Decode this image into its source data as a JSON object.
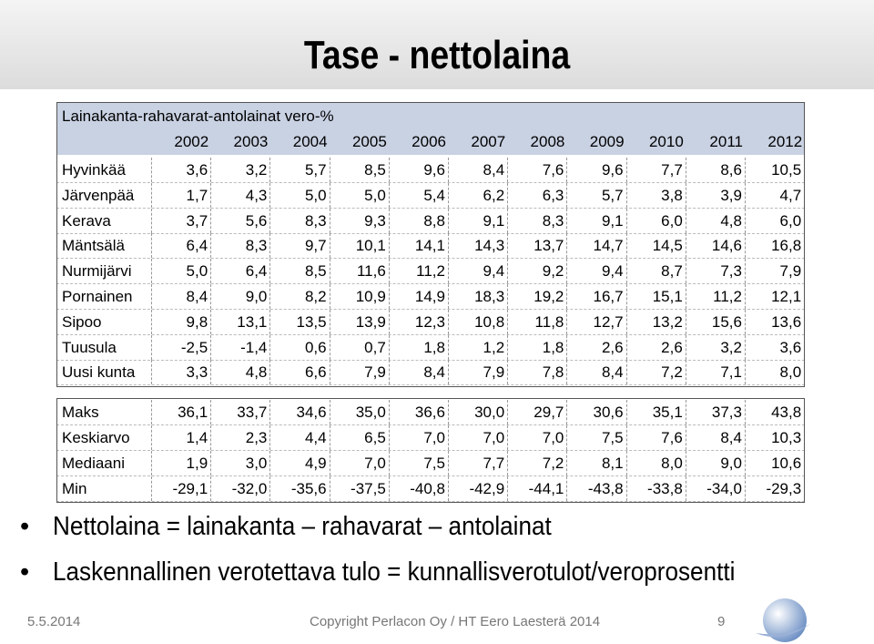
{
  "header": {
    "title": "Tase - nettolaina"
  },
  "table": {
    "caption": "Lainakanta-rahavarat-antolainat vero-%",
    "columns": [
      "2002",
      "2003",
      "2004",
      "2005",
      "2006",
      "2007",
      "2008",
      "2009",
      "2010",
      "2011",
      "2012"
    ],
    "rows": [
      [
        "Hyvinkää",
        "3,6",
        "3,2",
        "5,7",
        "8,5",
        "9,6",
        "8,4",
        "7,6",
        "9,6",
        "7,7",
        "8,6",
        "10,5"
      ],
      [
        "Järvenpää",
        "1,7",
        "4,3",
        "5,0",
        "5,0",
        "5,4",
        "6,2",
        "6,3",
        "5,7",
        "3,8",
        "3,9",
        "4,7"
      ],
      [
        "Kerava",
        "3,7",
        "5,6",
        "8,3",
        "9,3",
        "8,8",
        "9,1",
        "8,3",
        "9,1",
        "6,0",
        "4,8",
        "6,0"
      ],
      [
        "Mäntsälä",
        "6,4",
        "8,3",
        "9,7",
        "10,1",
        "14,1",
        "14,3",
        "13,7",
        "14,7",
        "14,5",
        "14,6",
        "16,8"
      ],
      [
        "Nurmijärvi",
        "5,0",
        "6,4",
        "8,5",
        "11,6",
        "11,2",
        "9,4",
        "9,2",
        "9,4",
        "8,7",
        "7,3",
        "7,9"
      ],
      [
        "Pornainen",
        "8,4",
        "9,0",
        "8,2",
        "10,9",
        "14,9",
        "18,3",
        "19,2",
        "16,7",
        "15,1",
        "11,2",
        "12,1"
      ],
      [
        "Sipoo",
        "9,8",
        "13,1",
        "13,5",
        "13,9",
        "12,3",
        "10,8",
        "11,8",
        "12,7",
        "13,2",
        "15,6",
        "13,6"
      ],
      [
        "Tuusula",
        "-2,5",
        "-1,4",
        "0,6",
        "0,7",
        "1,8",
        "1,2",
        "1,8",
        "2,6",
        "2,6",
        "3,2",
        "3,6"
      ],
      [
        "Uusi kunta",
        "3,3",
        "4,8",
        "6,6",
        "7,9",
        "8,4",
        "7,9",
        "7,8",
        "8,4",
        "7,2",
        "7,1",
        "8,0"
      ]
    ],
    "summary": [
      [
        "Maks",
        "36,1",
        "33,7",
        "34,6",
        "35,0",
        "36,6",
        "30,0",
        "29,7",
        "30,6",
        "35,1",
        "37,3",
        "43,8"
      ],
      [
        "Keskiarvo",
        "1,4",
        "2,3",
        "4,4",
        "6,5",
        "7,0",
        "7,0",
        "7,0",
        "7,5",
        "7,6",
        "8,4",
        "10,3"
      ],
      [
        "Mediaani",
        "1,9",
        "3,0",
        "4,9",
        "7,0",
        "7,5",
        "7,7",
        "7,2",
        "8,1",
        "8,0",
        "9,0",
        "10,6"
      ],
      [
        "Min",
        "-29,1",
        "-32,0",
        "-35,6",
        "-37,5",
        "-40,8",
        "-42,9",
        "-44,1",
        "-43,8",
        "-33,8",
        "-34,0",
        "-29,3"
      ]
    ]
  },
  "bullets": [
    "Nettolaina = lainakanta – rahavarat – antolainat",
    "Laskennallinen verotettava tulo = kunnallisverotulot/veroprosentti"
  ],
  "footer": {
    "date": "5.5.2014",
    "copyright": "Copyright Perlacon Oy / HT Eero Laesterä 2014",
    "page": "9"
  }
}
